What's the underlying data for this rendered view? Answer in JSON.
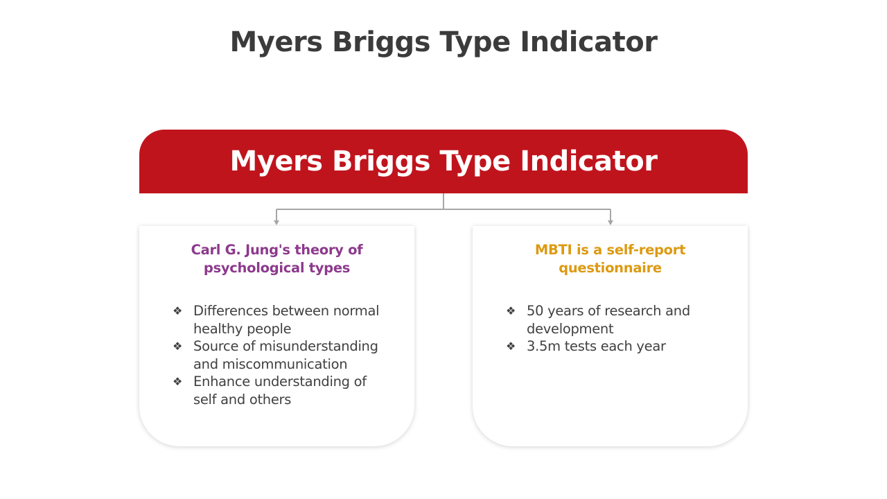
{
  "title": "Myers Briggs Type Indicator",
  "banner": {
    "text": "Myers Briggs Type Indicator",
    "color": "#c0141d"
  },
  "connector_color": "#a6a6a6",
  "bullet_icon": "diamond-quad-bullet-icon",
  "cards": [
    {
      "heading": "Carl G. Jung's theory of psychological types",
      "heading_color": "#8c3a8c",
      "items": [
        "Differences between normal healthy people",
        "Source of misunderstanding and miscommunication",
        "Enhance understanding  of self and others"
      ]
    },
    {
      "heading": "MBTI  is a self-report questionnaire",
      "heading_color": "#dc9a12",
      "items": [
        "50 years of research and development",
        "3.5m tests each year"
      ]
    }
  ]
}
